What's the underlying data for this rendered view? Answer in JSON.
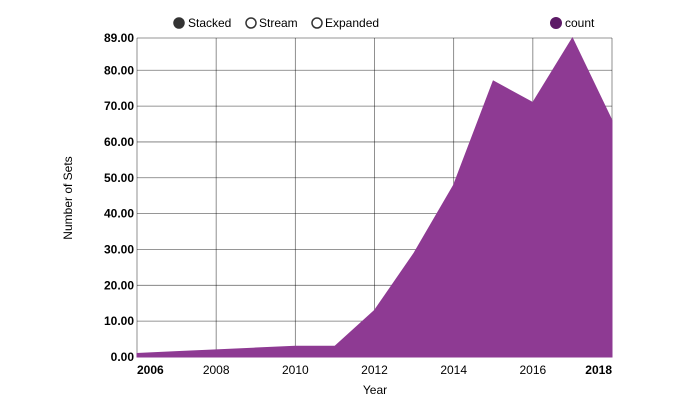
{
  "controls": [
    {
      "label": "Stacked",
      "selected": true
    },
    {
      "label": "Stream",
      "selected": false
    },
    {
      "label": "Expanded",
      "selected": false
    }
  ],
  "chart_data": {
    "type": "area",
    "xlabel": "Year",
    "ylabel": "Number of Sets",
    "xlim": [
      2006,
      2018
    ],
    "ylim": [
      0,
      89
    ],
    "x_ticks": [
      2006,
      2008,
      2010,
      2012,
      2014,
      2016,
      2018
    ],
    "y_ticks": [
      0,
      10,
      20,
      30,
      40,
      50,
      60,
      70,
      80,
      89
    ],
    "y_tick_labels": [
      "0.00",
      "10.00",
      "20.00",
      "30.00",
      "40.00",
      "50.00",
      "60.00",
      "70.00",
      "80.00",
      "89.00"
    ],
    "x_tick_labels": [
      "2006",
      "2008",
      "2010",
      "2012",
      "2014",
      "2016",
      "2018"
    ],
    "legend_position": "top-right",
    "series": [
      {
        "name": "count",
        "color": "#8e3a93",
        "x": [
          2006,
          2007,
          2008,
          2009,
          2010,
          2011,
          2012,
          2013,
          2014,
          2015,
          2016,
          2017,
          2018
        ],
        "values": [
          1,
          1.5,
          2,
          2.5,
          3,
          3,
          13,
          29,
          48,
          77,
          71,
          89,
          66
        ]
      }
    ],
    "grid": true
  }
}
